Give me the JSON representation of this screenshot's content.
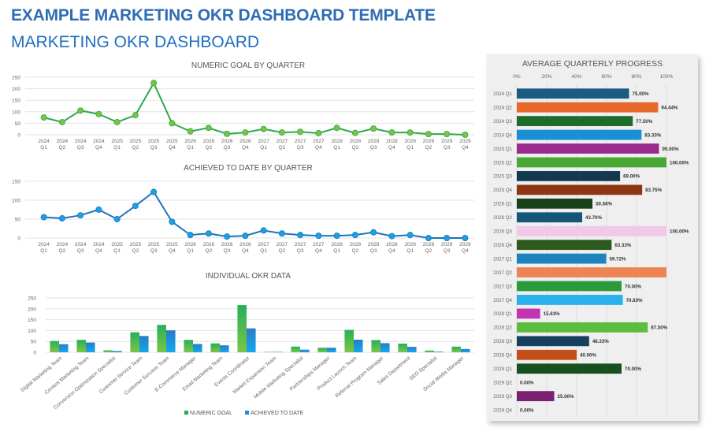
{
  "header": {
    "title": "EXAMPLE MARKETING OKR DASHBOARD TEMPLATE",
    "subtitle": "MARKETING OKR DASHBOARD"
  },
  "colors": {
    "goal_line": "#2aaa4a",
    "goal_marker": "#7dc242",
    "achieved_line": "#1b75bb",
    "achieved_marker": "#1ca0e4",
    "grid": "#e3e3e3",
    "title_blue": "#2e6db4"
  },
  "chart_data": [
    {
      "id": "numeric-goal",
      "type": "line",
      "title": "NUMERIC GOAL BY QUARTER",
      "x": [
        "2024 Q1",
        "2024 Q2",
        "2024 Q3",
        "2024 Q4",
        "2025 Q1",
        "2025 Q2",
        "2025 Q3",
        "2025 Q4",
        "2026 Q1",
        "2026 Q2",
        "2026 Q3",
        "2026 Q4",
        "2027 Q1",
        "2027 Q2",
        "2027 Q3",
        "2027 Q4",
        "2028 Q1",
        "2028 Q2",
        "2028 Q3",
        "2028 Q4",
        "2029 Q1",
        "2029 Q2",
        "2029 Q3",
        "2029 Q4"
      ],
      "values": [
        75,
        55,
        105,
        90,
        55,
        85,
        225,
        50,
        15,
        30,
        4,
        10,
        25,
        10,
        13,
        7,
        30,
        8,
        27,
        10,
        10,
        3,
        3,
        0
      ],
      "ylim": [
        0,
        250
      ],
      "yticks": [
        0,
        50,
        100,
        150,
        200,
        250
      ],
      "grid": true
    },
    {
      "id": "achieved",
      "type": "line",
      "title": "ACHIEVED TO DATE BY QUARTER",
      "x": [
        "2024 Q1",
        "2024 Q2",
        "2024 Q3",
        "2024 Q4",
        "2025 Q1",
        "2025 Q2",
        "2025 Q3",
        "2025 Q4",
        "2026 Q1",
        "2026 Q2",
        "2026 Q3",
        "2026 Q4",
        "2027 Q1",
        "2027 Q2",
        "2027 Q3",
        "2027 Q4",
        "2028 Q1",
        "2028 Q2",
        "2028 Q3",
        "2028 Q4",
        "2029 Q1",
        "2029 Q2",
        "2029 Q3",
        "2029 Q4"
      ],
      "values": [
        55,
        52,
        60,
        75,
        50,
        85,
        122,
        43,
        8,
        12,
        4,
        6,
        20,
        12,
        8,
        6,
        6,
        8,
        15,
        5,
        8,
        0,
        0,
        0
      ],
      "ylim": [
        0,
        150
      ],
      "yticks": [
        0,
        50,
        100,
        150
      ],
      "grid": true
    },
    {
      "id": "individual",
      "type": "bar",
      "title": "INDIVIDUAL OKR DATA",
      "categories": [
        "Digital Marketing Team",
        "Content Marketing Team",
        "Conversion Optimization Specialist",
        "Customer Service Team",
        "Customer Success Team",
        "E-Commerce Manager",
        "Email Marketing Team",
        "Events Coordinator",
        "Market Expansion Team",
        "Mobile Marketing Specialist",
        "Partnerships Manager",
        "Product Launch Team",
        "Referral Program Manager",
        "Sales Department",
        "SEO Specialist",
        "Social Media Manager"
      ],
      "series": [
        {
          "name": "NUMERIC GOAL",
          "values": [
            52,
            57,
            9,
            92,
            126,
            57,
            41,
            217,
            2,
            26,
            21,
            103,
            56,
            40,
            8,
            26
          ]
        },
        {
          "name": "ACHIEVED TO DATE",
          "values": [
            37,
            45,
            6,
            75,
            101,
            38,
            32,
            110,
            2,
            12,
            21,
            58,
            42,
            25,
            3,
            15
          ]
        }
      ],
      "ylim": [
        0,
        250
      ],
      "yticks": [
        0,
        50,
        100,
        150,
        200,
        250
      ],
      "legend": "bottom",
      "grid": true
    },
    {
      "id": "avg-progress",
      "type": "bar",
      "orientation": "horizontal",
      "title": "AVERAGE QUARTERLY PROGRESS",
      "categories": [
        "2024 Q1",
        "2024 Q2",
        "2024 Q3",
        "2024 Q4",
        "2025 Q1",
        "2025 Q2",
        "2025 Q3",
        "2025 Q4",
        "2026 Q1",
        "2026 Q2",
        "2026 Q3",
        "2026 Q4",
        "2027 Q1",
        "2027 Q2",
        "2027 Q3",
        "2027 Q4",
        "2028 Q1",
        "2028 Q2",
        "2028 Q3",
        "2028 Q4",
        "2029 Q1",
        "2029 Q2",
        "2029 Q3",
        "2029 Q4"
      ],
      "values": [
        75.0,
        94.44,
        77.5,
        83.33,
        95.0,
        100.0,
        69.0,
        83.75,
        50.56,
        43.7,
        100.0,
        63.33,
        59.72,
        100.0,
        70.0,
        70.83,
        15.63,
        87.5,
        48.33,
        40.0,
        70.0,
        0.0,
        25.0,
        0.0
      ],
      "labels": [
        "75.00%",
        "94.44%",
        "77.50%",
        "83.33%",
        "95.00%",
        "100.00%",
        "69.00%",
        "83.75%",
        "50.56%",
        "43.70%",
        "100.00%",
        "63.33%",
        "59.72%",
        "",
        "70.00%",
        "70.83%",
        "15.63%",
        "87.50%",
        "48.33%",
        "40.00%",
        "70.00%",
        "0.00%",
        "25.00%",
        "0.00%"
      ],
      "bar_colors": [
        "#1b5a82",
        "#e8672a",
        "#1f6b2a",
        "#1a8fd4",
        "#9a2a8c",
        "#4aa834",
        "#143a52",
        "#8e3612",
        "#163f1a",
        "#13567a",
        "#f0c8e8",
        "#2e5a1e",
        "#1e82be",
        "#ec8454",
        "#2a9a3a",
        "#2ab0ec",
        "#c234b4",
        "#5cbc3c",
        "#173f60",
        "#c44e18",
        "#174f1e",
        "#777777",
        "#7a2070",
        "#777777"
      ],
      "xlim": [
        0,
        100
      ],
      "xticks": [
        "0%",
        "20%",
        "40%",
        "60%",
        "80%",
        "100%"
      ],
      "grid": true
    }
  ]
}
